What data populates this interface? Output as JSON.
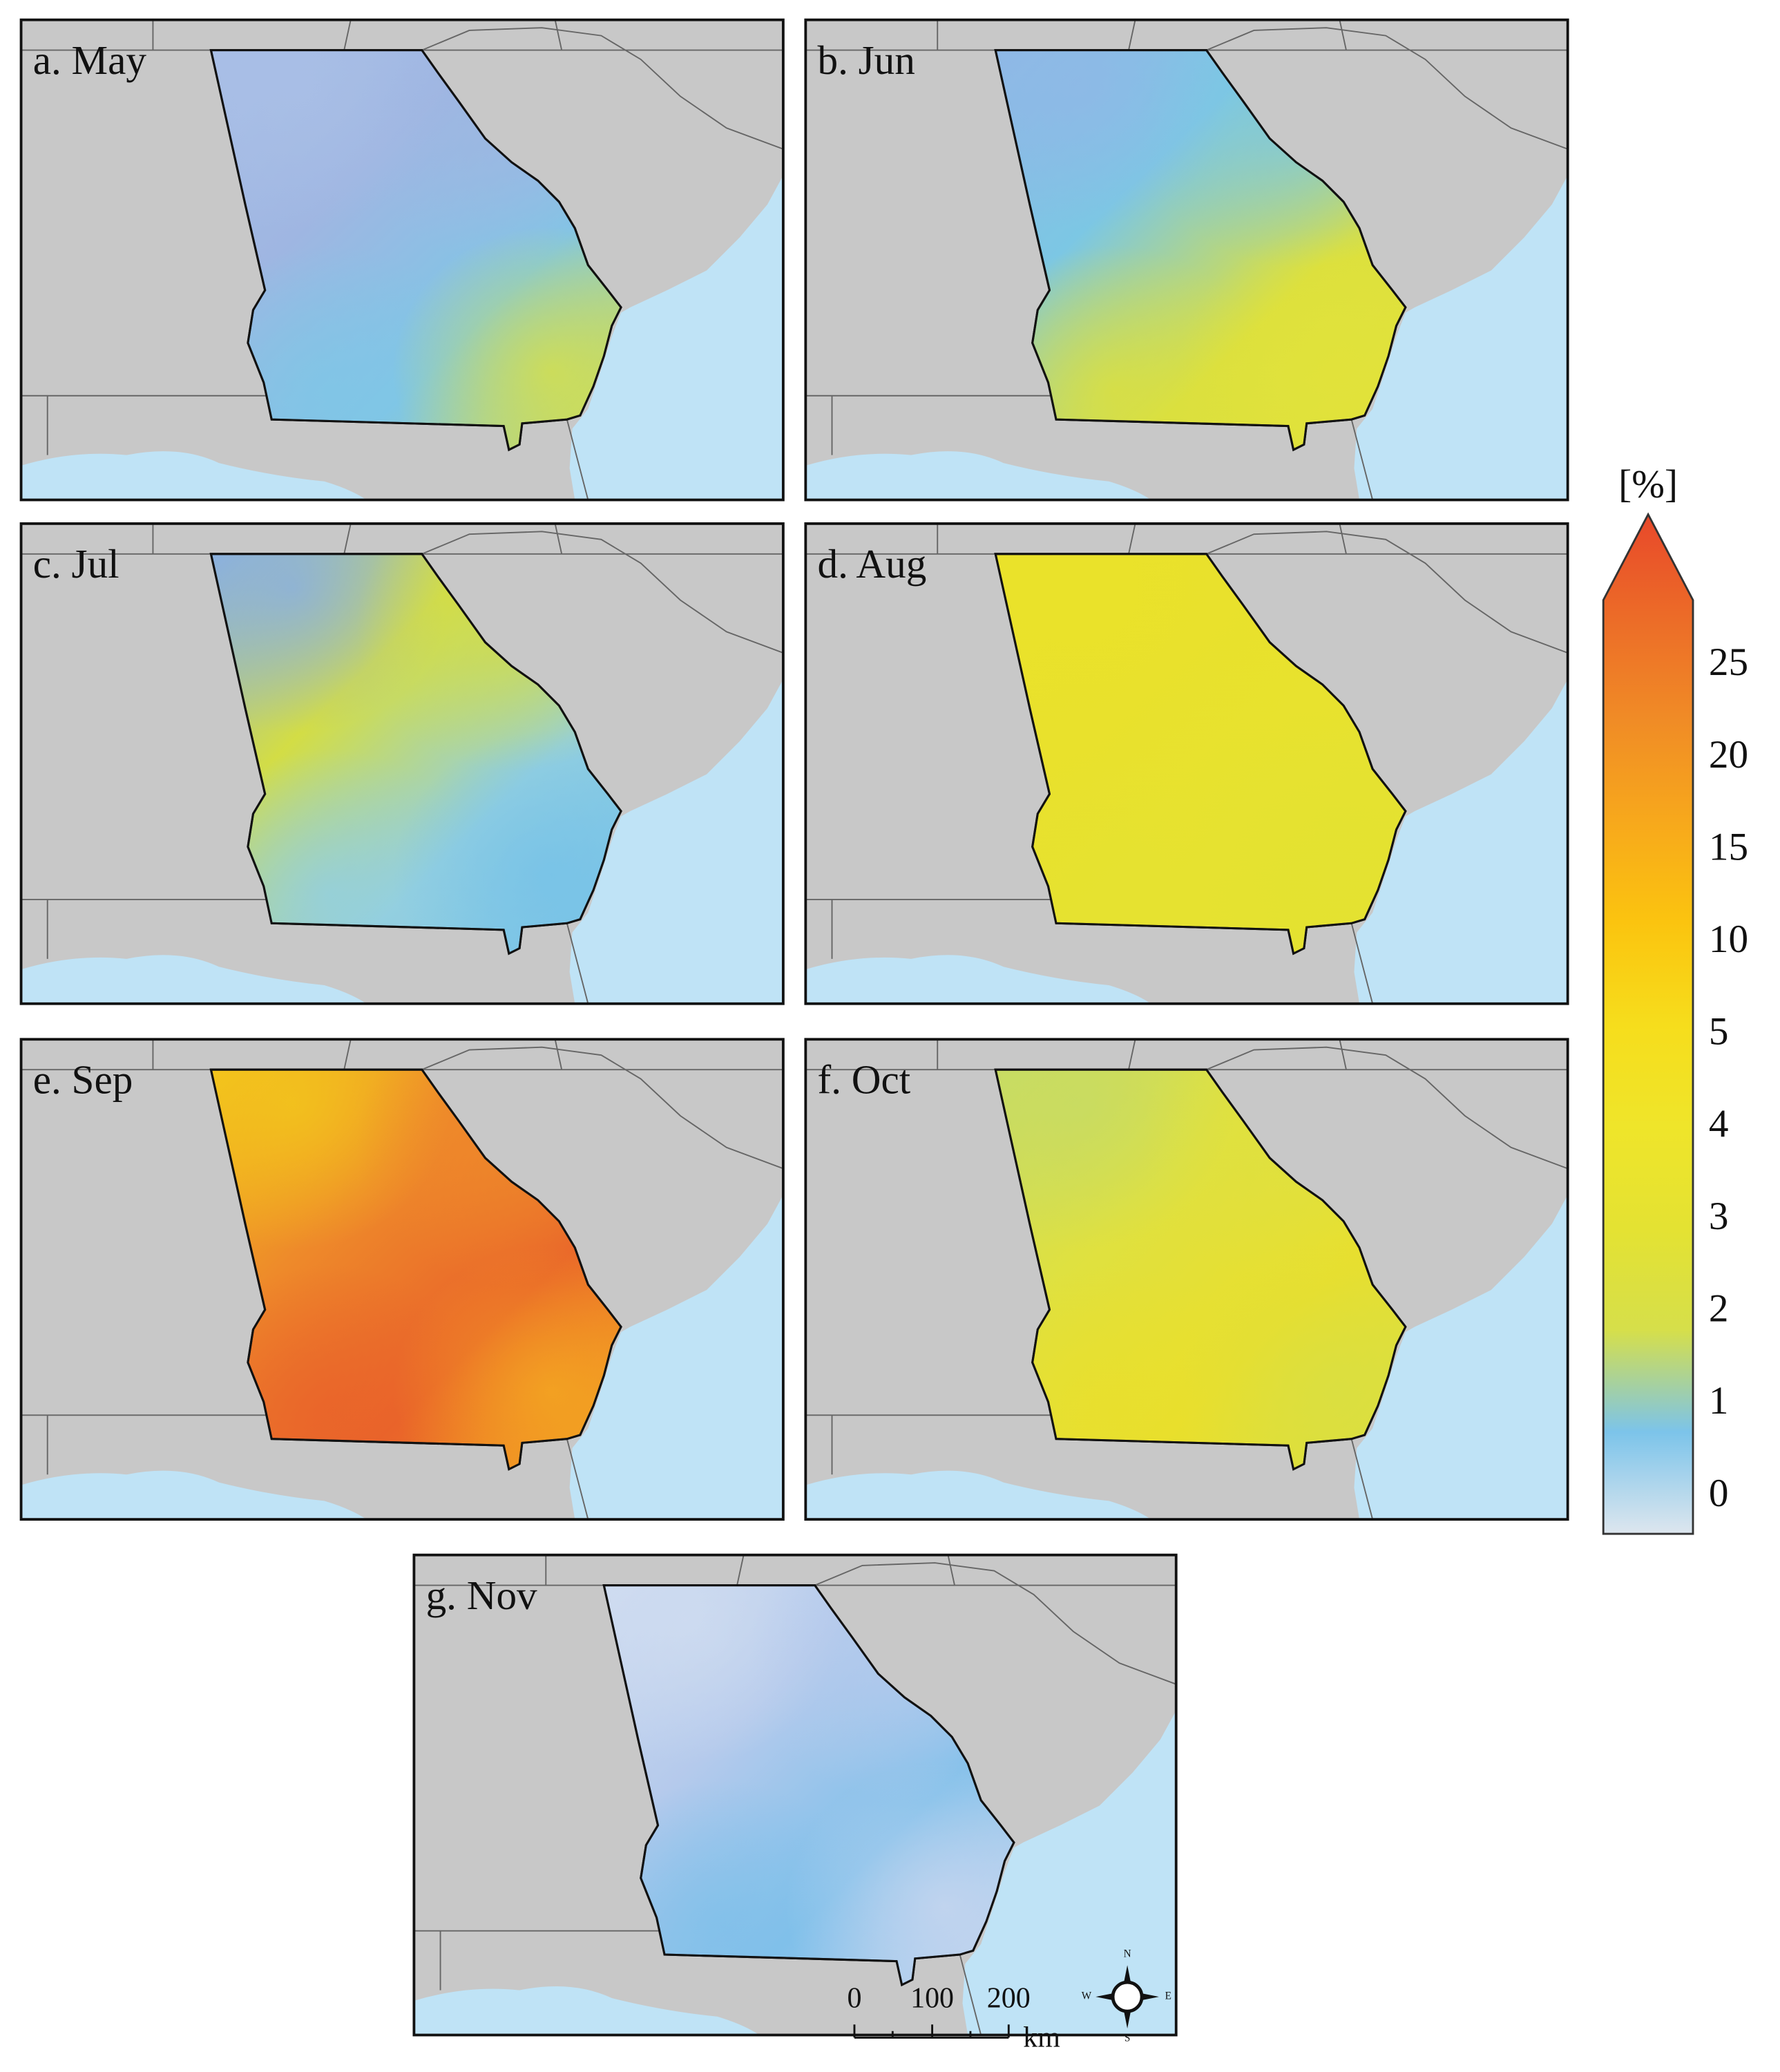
{
  "panels": [
    {
      "title": "a. May",
      "colors": [
        "#a9bfe6",
        "#9fb6e2",
        "#7fc6e6",
        "#d5df4a"
      ]
    },
    {
      "title": "b. Jun",
      "colors": [
        "#8fb8e6",
        "#7cc7e4",
        "#dbe03e",
        "#e2e23a"
      ]
    },
    {
      "title": "c. Jul",
      "colors": [
        "#8ab0e0",
        "#d3dd45",
        "#93cfe0",
        "#76c2e8"
      ]
    },
    {
      "title": "d. Aug",
      "colors": [
        "#eae22a",
        "#e9e12c",
        "#e6e230",
        "#e4e231"
      ]
    },
    {
      "title": "e. Sep",
      "colors": [
        "#f3c51c",
        "#ee8a2a",
        "#e9632a",
        "#f4a821"
      ]
    },
    {
      "title": "f. Oct",
      "colors": [
        "#c7db64",
        "#dfe140",
        "#e9df2c",
        "#d9df42"
      ]
    },
    {
      "title": "g. Nov",
      "colors": [
        "#cfdcf0",
        "#b5caec",
        "#80c0ea",
        "#c8d6ef"
      ]
    }
  ],
  "colorbar": {
    "label": "[%]",
    "ticks": [
      0,
      1,
      2,
      3,
      4,
      5,
      10,
      15,
      20,
      25
    ],
    "colors": [
      "#dde6ee",
      "#7cc4ea",
      "#d6df4a",
      "#e4e232",
      "#efe52a",
      "#f6dd1c",
      "#fbc40f",
      "#f7a81c",
      "#f08b26",
      "#ec6b28",
      "#e8482a"
    ]
  },
  "scale_bar": {
    "labels": [
      0,
      100,
      200
    ],
    "unit": "km"
  },
  "compass": [
    "N",
    "S",
    "E",
    "W"
  ]
}
